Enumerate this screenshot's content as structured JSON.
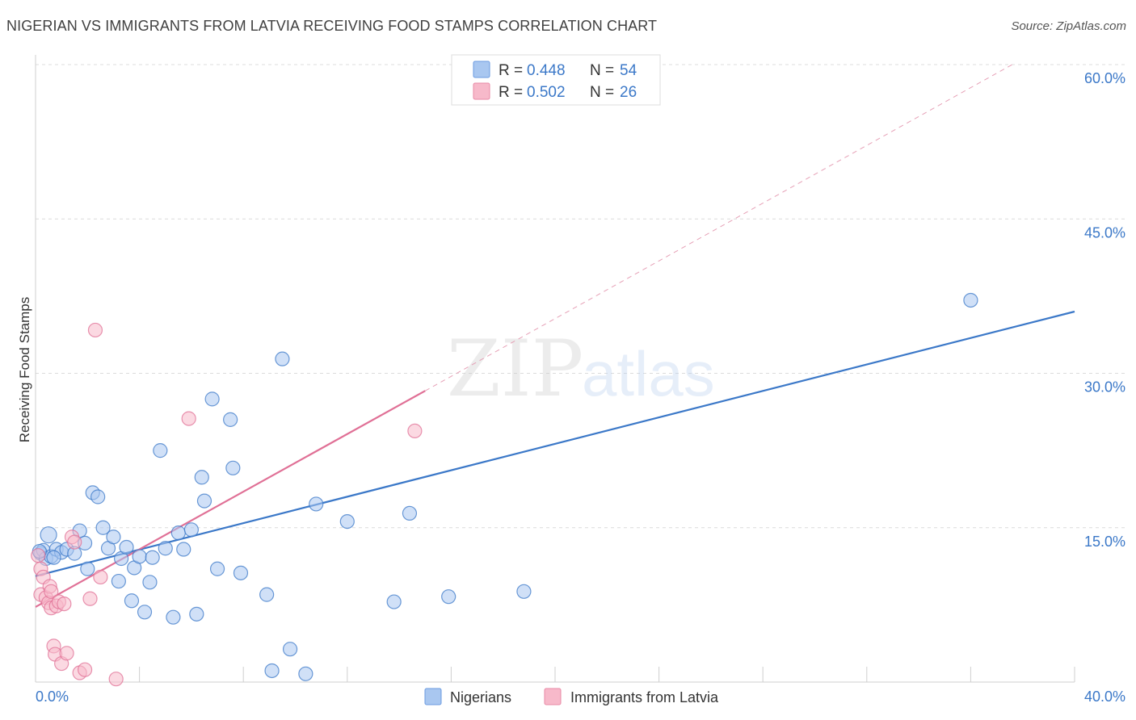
{
  "header": {
    "title": "NIGERIAN VS IMMIGRANTS FROM LATVIA RECEIVING FOOD STAMPS CORRELATION CHART",
    "source": "Source: ZipAtlas.com"
  },
  "watermark": {
    "zip": "ZIP",
    "atlas": "atlas"
  },
  "legend": {
    "r_label": "R = ",
    "n_label": "N = ",
    "rows": [
      {
        "r": "0.448",
        "n": "54",
        "color": "#a9c7f0"
      },
      {
        "r": "0.502",
        "n": "26",
        "color": "#f7b9ca"
      }
    ]
  },
  "chart_data": {
    "type": "scatter",
    "title": "NIGERIAN VS IMMIGRANTS FROM LATVIA RECEIVING FOOD STAMPS CORRELATION CHART",
    "xlabel": "",
    "ylabel": "Receiving Food Stamps",
    "xlim": [
      0,
      40
    ],
    "ylim": [
      0,
      60
    ],
    "x_tick_labels": [
      "0.0%",
      "40.0%"
    ],
    "y_ticks": [
      {
        "value": 15,
        "label": "15.0%"
      },
      {
        "value": 30,
        "label": "30.0%"
      },
      {
        "value": 45,
        "label": "45.0%"
      },
      {
        "value": 60,
        "label": "60.0%"
      }
    ],
    "grid": "horizontal dashed",
    "legend_position": "top-center",
    "series": [
      {
        "name": "Nigerians",
        "color": "#3b78c8",
        "fill": "#a9c7f0",
        "trend": {
          "x": [
            0,
            40
          ],
          "y": [
            10.3,
            36.0
          ],
          "style": "solid"
        },
        "points": [
          [
            0.2,
            12.5
          ],
          [
            0.3,
            12.8
          ],
          [
            0.4,
            12.0
          ],
          [
            0.5,
            14.3
          ],
          [
            0.6,
            12.2
          ],
          [
            0.8,
            12.9
          ],
          [
            1.0,
            12.6
          ],
          [
            1.2,
            12.9
          ],
          [
            1.5,
            12.5
          ],
          [
            1.7,
            14.7
          ],
          [
            1.9,
            13.5
          ],
          [
            2.0,
            11.0
          ],
          [
            2.2,
            18.4
          ],
          [
            2.4,
            18.0
          ],
          [
            2.6,
            15.0
          ],
          [
            2.8,
            13.0
          ],
          [
            3.0,
            14.1
          ],
          [
            3.2,
            9.8
          ],
          [
            3.3,
            12.0
          ],
          [
            3.5,
            13.1
          ],
          [
            3.7,
            7.9
          ],
          [
            3.8,
            11.1
          ],
          [
            4.0,
            12.2
          ],
          [
            4.2,
            6.8
          ],
          [
            4.4,
            9.7
          ],
          [
            4.5,
            12.1
          ],
          [
            4.8,
            22.5
          ],
          [
            5.0,
            13.0
          ],
          [
            5.3,
            6.3
          ],
          [
            5.5,
            14.5
          ],
          [
            5.7,
            12.9
          ],
          [
            6.0,
            14.8
          ],
          [
            6.2,
            6.6
          ],
          [
            6.4,
            19.9
          ],
          [
            6.5,
            17.6
          ],
          [
            6.8,
            27.5
          ],
          [
            7.0,
            11.0
          ],
          [
            7.5,
            25.5
          ],
          [
            7.6,
            20.8
          ],
          [
            7.9,
            10.6
          ],
          [
            8.9,
            8.5
          ],
          [
            9.1,
            1.1
          ],
          [
            9.5,
            31.4
          ],
          [
            9.8,
            3.2
          ],
          [
            10.4,
            0.8
          ],
          [
            10.8,
            17.3
          ],
          [
            12.0,
            15.6
          ],
          [
            13.8,
            7.8
          ],
          [
            14.4,
            16.4
          ],
          [
            15.9,
            8.3
          ],
          [
            18.8,
            8.8
          ],
          [
            36.0,
            37.1
          ],
          [
            0.15,
            12.7
          ],
          [
            0.7,
            12.1
          ]
        ]
      },
      {
        "name": "Immigrants from Latvia",
        "color": "#e07096",
        "fill": "#f7b9ca",
        "trend": {
          "x": [
            0,
            15.0
          ],
          "y": [
            7.3,
            28.3
          ],
          "style": "solid",
          "extension": {
            "x": [
              15.0,
              37.6
            ],
            "y": [
              28.3,
              60.0
            ],
            "style": "dashed"
          }
        },
        "points": [
          [
            0.1,
            12.3
          ],
          [
            0.2,
            11.0
          ],
          [
            0.3,
            10.2
          ],
          [
            0.2,
            8.5
          ],
          [
            0.4,
            8.2
          ],
          [
            0.5,
            7.7
          ],
          [
            0.55,
            9.3
          ],
          [
            0.6,
            8.8
          ],
          [
            0.6,
            7.2
          ],
          [
            0.7,
            3.5
          ],
          [
            0.75,
            2.7
          ],
          [
            0.8,
            7.4
          ],
          [
            0.9,
            7.8
          ],
          [
            1.0,
            1.8
          ],
          [
            1.1,
            7.6
          ],
          [
            1.2,
            2.8
          ],
          [
            1.4,
            14.1
          ],
          [
            1.5,
            13.6
          ],
          [
            1.7,
            0.9
          ],
          [
            1.9,
            1.2
          ],
          [
            2.1,
            8.1
          ],
          [
            2.3,
            34.2
          ],
          [
            2.5,
            10.2
          ],
          [
            3.1,
            0.3
          ],
          [
            5.9,
            25.6
          ],
          [
            14.6,
            24.4
          ]
        ]
      }
    ]
  },
  "bottom_legend": [
    {
      "label": "Nigerians",
      "color": "#a9c7f0",
      "stroke": "#6b9be0"
    },
    {
      "label": "Immigrants from Latvia",
      "color": "#f7b9ca",
      "stroke": "#e889a6"
    }
  ]
}
